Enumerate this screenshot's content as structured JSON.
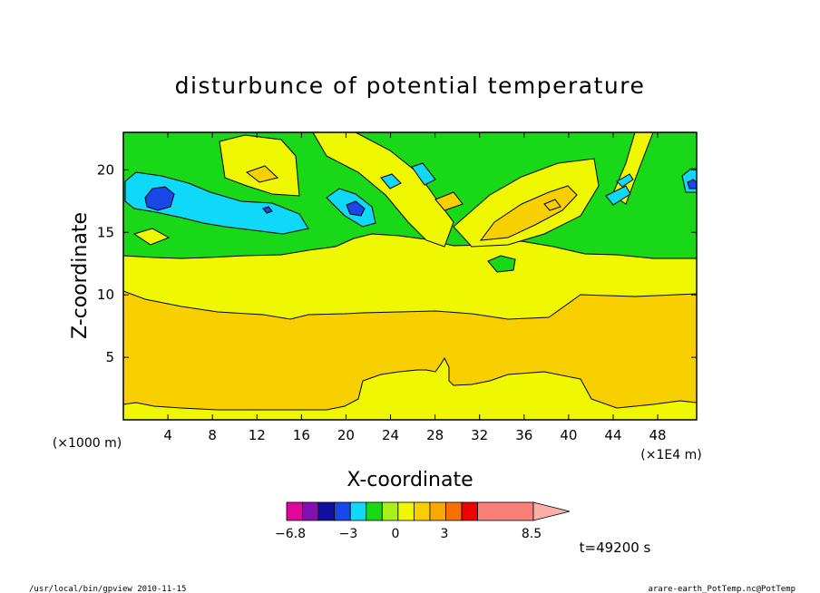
{
  "chart_data": {
    "type": "heatmap",
    "title": "disturbunce of potential temperature",
    "xlabel": "X-coordinate",
    "ylabel": "Z-coordinate",
    "x_unit_left": "(×1000 m)",
    "x_unit_right": "(×1E4 m)",
    "xlim": [
      0,
      51.5
    ],
    "ylim": [
      0,
      23
    ],
    "x_ticks": [
      4,
      8,
      12,
      16,
      20,
      24,
      28,
      32,
      36,
      40,
      44,
      48
    ],
    "y_ticks": [
      5,
      10,
      15,
      20
    ],
    "colorbar": {
      "colors": [
        "#e0089a",
        "#8010b0",
        "#1010a0",
        "#1848e8",
        "#10d8f8",
        "#18d818",
        "#a8f018",
        "#f0f800",
        "#f8d000",
        "#f8a800",
        "#f87000",
        "#f00000",
        "#f88078",
        "#f8b0a8"
      ],
      "labels": [
        "−6.8",
        "−3",
        "0",
        "3",
        "8.5"
      ],
      "label_values": [
        -6.8,
        -3,
        0,
        3,
        8.5
      ]
    },
    "time_label": "t=49200 s"
  },
  "footer": {
    "left": "/usr/local/bin/gpview   2010-11-15",
    "right": "arare-earth_PotTemp.nc@PotTemp"
  }
}
